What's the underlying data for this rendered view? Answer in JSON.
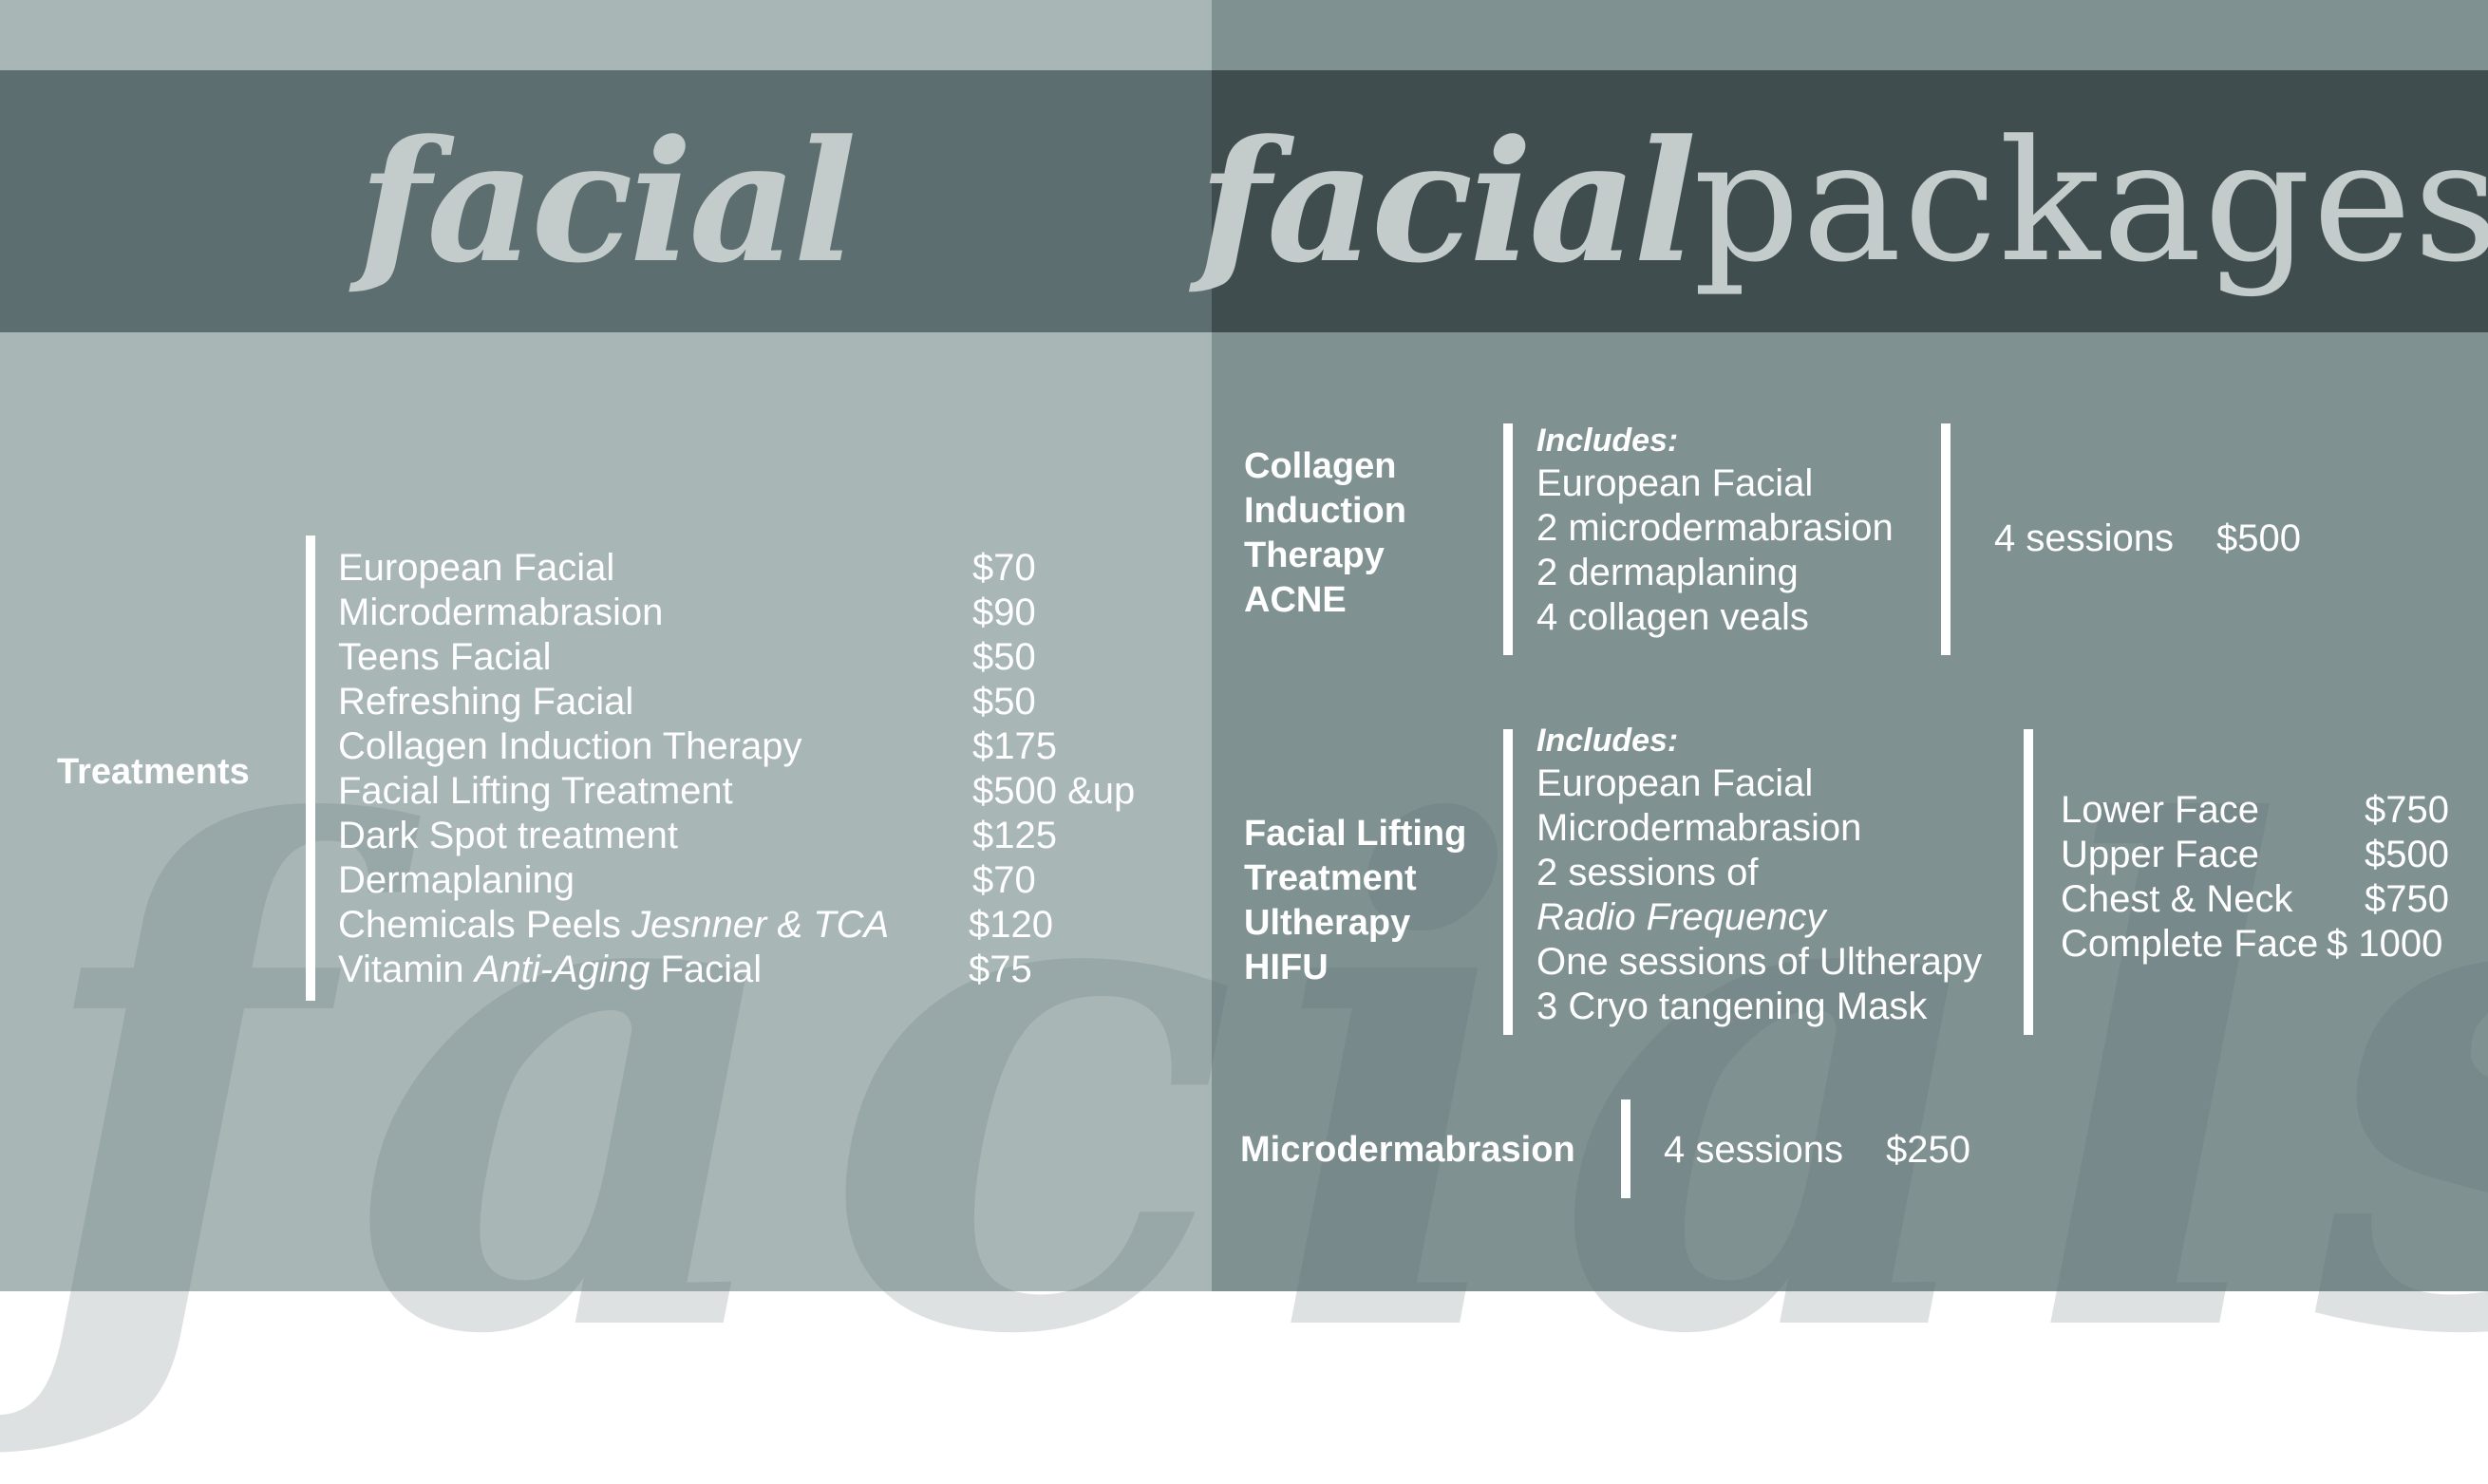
{
  "left": {
    "title": "facial",
    "section_label": "Treatments",
    "treatments": [
      {
        "name": "European Facial",
        "price": "$70"
      },
      {
        "name": "Microdermabrasion",
        "price": "$90"
      },
      {
        "name": "Teens Facial",
        "price": "$50"
      },
      {
        "name": "Refreshing Facial",
        "price": "$50"
      },
      {
        "name": "Collagen Induction Therapy",
        "price": "$175"
      },
      {
        "name": "Facial Lifting Treatment",
        "price": "$500 &up"
      },
      {
        "name": "Dark Spot treatment",
        "price": "$125"
      },
      {
        "name": "Dermaplaning",
        "price": "$70"
      },
      {
        "name_prefix": "Chemicals Peels ",
        "name_italic": "Jesnner & TCA",
        "price": "$120"
      },
      {
        "name_prefix": "Vitamin ",
        "name_italic": "Anti-Aging",
        "name_suffix": " Facial",
        "price": "$75"
      }
    ]
  },
  "right": {
    "title_italic": "facial",
    "title_upright": "packages",
    "collagen": {
      "label_lines": [
        "Collagen",
        "Induction",
        "Therapy",
        "ACNE"
      ],
      "includes_label": "Includes:",
      "items": [
        "European Facial",
        "2 microdermabrasion",
        "2 dermaplaning",
        "4 collagen veals"
      ],
      "sessions": "4 sessions",
      "price": "$500"
    },
    "lifting": {
      "label_lines": [
        "Facial Lifting",
        "Treatment",
        "Ultherapy",
        "HIFU"
      ],
      "includes_label": "Includes:",
      "items": [
        "European Facial",
        "Microdermabrasion",
        "2 sessions of"
      ],
      "items_italic": "Radio Frequency",
      "items_after": [
        "One sessions of Ultherapy",
        "3 Cryo tangening Mask"
      ],
      "prices": [
        {
          "area": "Lower Face",
          "price": "$750"
        },
        {
          "area": "Upper Face",
          "price": "$500"
        },
        {
          "area": "Chest & Neck",
          "price": "$750"
        },
        {
          "area": "Complete Face",
          "price": "$ 1000"
        }
      ]
    },
    "micro": {
      "label": "Microdermabrasion",
      "sessions": "4 sessions",
      "price": "$250"
    }
  },
  "watermark": "facials",
  "colors": {
    "left_bg": "#a8b6b6",
    "right_bg": "#7f9191",
    "left_band": "#5c6e6f",
    "right_band": "#3f4d4e",
    "title_text": "#c3cbcb",
    "text": "#ffffff"
  }
}
